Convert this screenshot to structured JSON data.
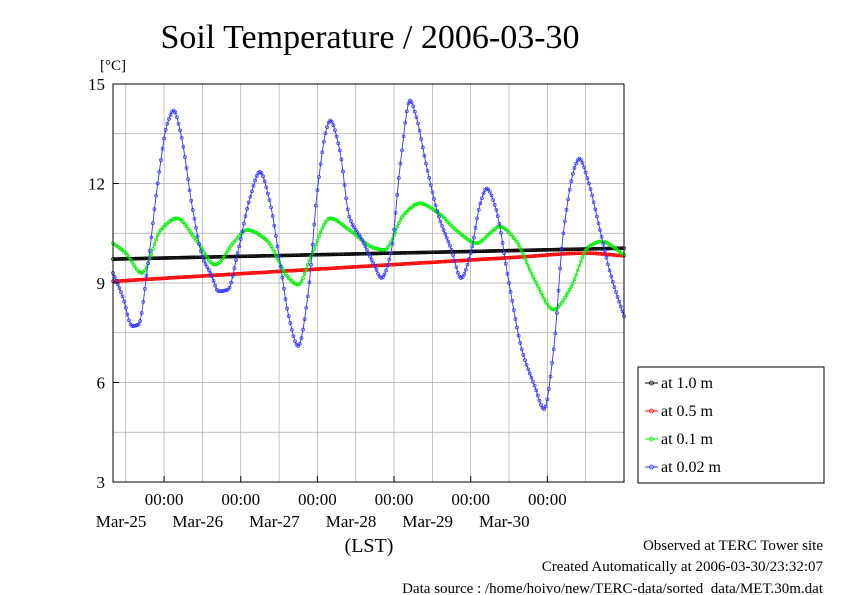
{
  "chart_data": {
    "type": "line",
    "title": "Soil Temperature / 2006-03-30",
    "ylabel": "[°C]",
    "xlabel": "(LST)",
    "ylim": [
      3,
      15
    ],
    "yticks": [
      3,
      6,
      9,
      12,
      15
    ],
    "x_start": "2006-03-24T08:00",
    "x_end": "2006-03-30T24:00",
    "x_major_ticks": [
      {
        "time": "2006-03-25T00:00",
        "label": "00:00",
        "date": "Mar-25"
      },
      {
        "time": "2006-03-26T00:00",
        "label": "00:00",
        "date": "Mar-26"
      },
      {
        "time": "2006-03-27T00:00",
        "label": "00:00",
        "date": "Mar-27"
      },
      {
        "time": "2006-03-28T00:00",
        "label": "00:00",
        "date": "Mar-28"
      },
      {
        "time": "2006-03-29T00:00",
        "label": "00:00",
        "date": "Mar-29"
      },
      {
        "time": "2006-03-30T00:00",
        "label": "00:00",
        "date": "Mar-30"
      }
    ],
    "grid": true,
    "legend_position": "right",
    "series": [
      {
        "name": "at 1.0 m",
        "color": "#000000",
        "points": [
          [
            "2006-03-24T08:00",
            9.72
          ],
          [
            "2006-03-30T24:00",
            10.05
          ]
        ]
      },
      {
        "name": "at 0.5 m",
        "color": "#ff0000",
        "points": [
          [
            "2006-03-24T08:00",
            9.05
          ],
          [
            "2006-03-29T15:00",
            9.78
          ],
          [
            "2006-03-30T12:00",
            9.9
          ],
          [
            "2006-03-30T24:00",
            9.82
          ]
        ]
      },
      {
        "name": "at 0.1 m",
        "color": "#00ee00",
        "points": [
          [
            "2006-03-24T08:00",
            10.2
          ],
          [
            "2006-03-24T12:00",
            9.9
          ],
          [
            "2006-03-24T17:00",
            9.3
          ],
          [
            "2006-03-24T23:00",
            10.6
          ],
          [
            "2006-03-25T04:00",
            10.95
          ],
          [
            "2006-03-25T10:00",
            10.3
          ],
          [
            "2006-03-25T16:00",
            9.55
          ],
          [
            "2006-03-25T22:00",
            10.25
          ],
          [
            "2006-03-26T02:00",
            10.6
          ],
          [
            "2006-03-26T08:00",
            10.3
          ],
          [
            "2006-03-26T15:00",
            9.15
          ],
          [
            "2006-03-26T18:00",
            8.95
          ],
          [
            "2006-03-26T22:00",
            9.8
          ],
          [
            "2006-03-27T04:00",
            10.95
          ],
          [
            "2006-03-27T10:00",
            10.6
          ],
          [
            "2006-03-27T18:00",
            10.05
          ],
          [
            "2006-03-27T21:00",
            10.0
          ],
          [
            "2006-03-28T03:00",
            11.05
          ],
          [
            "2006-03-28T08:00",
            11.4
          ],
          [
            "2006-03-28T14:00",
            11.1
          ],
          [
            "2006-03-28T20:00",
            10.55
          ],
          [
            "2006-03-29T02:00",
            10.2
          ],
          [
            "2006-03-29T06:00",
            10.5
          ],
          [
            "2006-03-29T09:00",
            10.7
          ],
          [
            "2006-03-29T14:00",
            10.3
          ],
          [
            "2006-03-29T20:00",
            9.1
          ],
          [
            "2006-03-30T02:00",
            8.2
          ],
          [
            "2006-03-30T07:00",
            8.8
          ],
          [
            "2006-03-30T13:00",
            10.1
          ],
          [
            "2006-03-30T17:00",
            10.25
          ],
          [
            "2006-03-30T24:00",
            9.85
          ]
        ]
      },
      {
        "name": "at 0.02 m",
        "color": "#3333ff",
        "points": [
          [
            "2006-03-24T08:00",
            9.3
          ],
          [
            "2006-03-24T11:00",
            8.6
          ],
          [
            "2006-03-24T14:00",
            7.7
          ],
          [
            "2006-03-24T16:00",
            7.75
          ],
          [
            "2006-03-24T19:00",
            9.6
          ],
          [
            "2006-03-24T22:00",
            12.0
          ],
          [
            "2006-03-25T01:00",
            13.8
          ],
          [
            "2006-03-25T03:00",
            14.2
          ],
          [
            "2006-03-25T05:00",
            13.6
          ],
          [
            "2006-03-25T09:00",
            11.2
          ],
          [
            "2006-03-25T12:00",
            9.8
          ],
          [
            "2006-03-25T15:00",
            9.2
          ],
          [
            "2006-03-25T17:00",
            8.75
          ],
          [
            "2006-03-25T20:00",
            8.8
          ],
          [
            "2006-03-25T23:00",
            9.9
          ],
          [
            "2006-03-26T03:00",
            11.6
          ],
          [
            "2006-03-26T06:00",
            12.35
          ],
          [
            "2006-03-26T09:00",
            11.5
          ],
          [
            "2006-03-26T12:00",
            9.8
          ],
          [
            "2006-03-26T15:00",
            8.0
          ],
          [
            "2006-03-26T18:00",
            7.1
          ],
          [
            "2006-03-26T21:00",
            8.6
          ],
          [
            "2006-03-27T00:00",
            11.8
          ],
          [
            "2006-03-27T03:00",
            13.7
          ],
          [
            "2006-03-27T04:00",
            13.9
          ],
          [
            "2006-03-27T07:00",
            13.0
          ],
          [
            "2006-03-27T10:00",
            11.0
          ],
          [
            "2006-03-27T14:00",
            10.3
          ],
          [
            "2006-03-27T18:00",
            9.5
          ],
          [
            "2006-03-27T20:00",
            9.15
          ],
          [
            "2006-03-27T23:00",
            9.9
          ],
          [
            "2006-03-28T02:00",
            12.6
          ],
          [
            "2006-03-28T05:00",
            14.5
          ],
          [
            "2006-03-28T07:00",
            14.0
          ],
          [
            "2006-03-28T10:00",
            12.6
          ],
          [
            "2006-03-28T14:00",
            11.0
          ],
          [
            "2006-03-28T18:00",
            10.0
          ],
          [
            "2006-03-28T21:00",
            9.15
          ],
          [
            "2006-03-29T00:00",
            9.9
          ],
          [
            "2006-03-29T03:00",
            11.4
          ],
          [
            "2006-03-29T05:00",
            11.85
          ],
          [
            "2006-03-29T08:00",
            11.2
          ],
          [
            "2006-03-29T12:00",
            9.0
          ],
          [
            "2006-03-29T16:00",
            7.0
          ],
          [
            "2006-03-29T20:00",
            5.9
          ],
          [
            "2006-03-29T23:00",
            5.2
          ],
          [
            "2006-03-30T02:00",
            7.0
          ],
          [
            "2006-03-30T05:00",
            10.5
          ],
          [
            "2006-03-30T09:00",
            12.6
          ],
          [
            "2006-03-30T10:00",
            12.75
          ],
          [
            "2006-03-30T13:00",
            12.0
          ],
          [
            "2006-03-30T16:00",
            10.8
          ],
          [
            "2006-03-30T20:00",
            9.2
          ],
          [
            "2006-03-30T24:00",
            8.0
          ]
        ]
      }
    ]
  },
  "footer": {
    "line1": "Observed at TERC Tower site",
    "line2": "Created Automatically at 2006-03-30/23:32:07",
    "line3": "Data source : /home/hoivo/new/TERC-data/sorted  data/MET.30m.dat"
  }
}
